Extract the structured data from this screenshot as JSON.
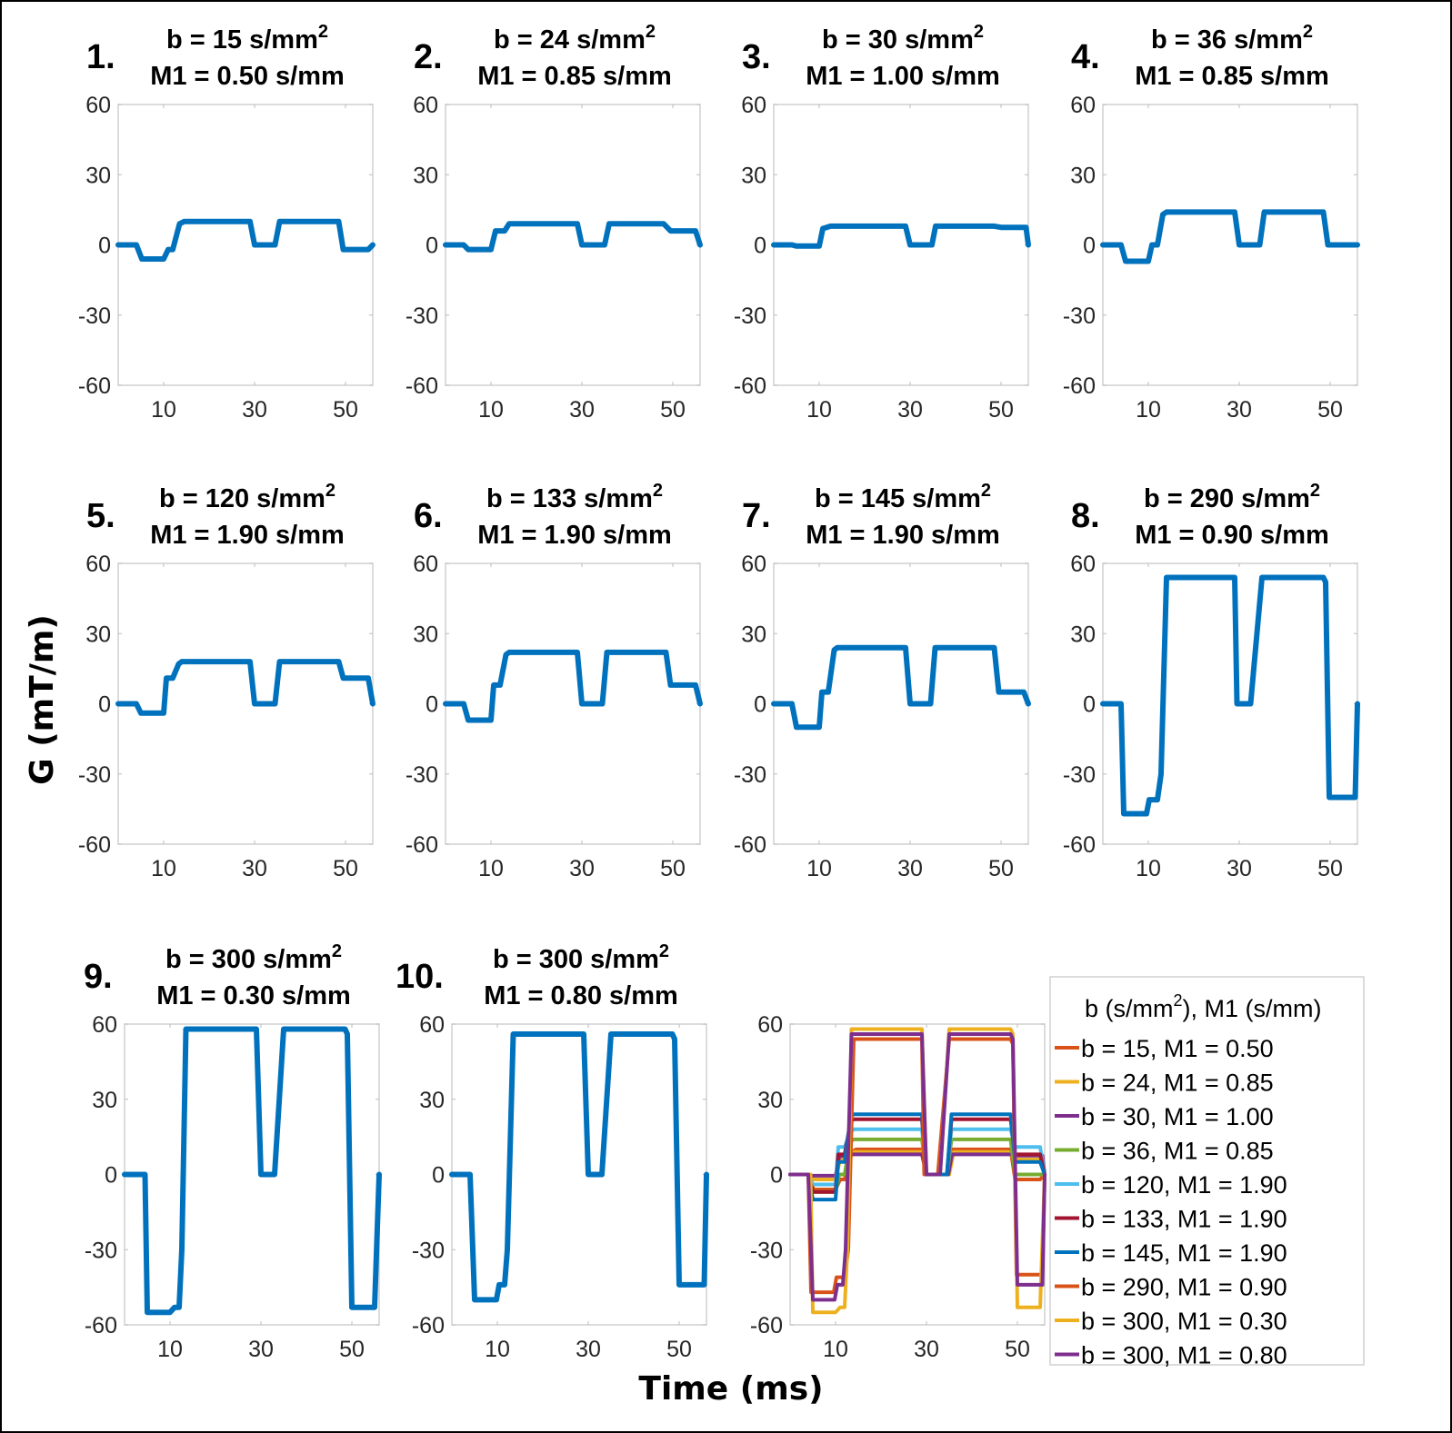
{
  "figure": {
    "ylabel": "G (mT/m)",
    "xlabel": "Time (ms)"
  },
  "chart_data": [
    {
      "type": "line",
      "id": 1,
      "panel_number": "1.",
      "title_line1": "b = 15 s/mm",
      "title_sup": "2",
      "title_line2": "M1 = 0.50 s/mm",
      "xlim": [
        0,
        56
      ],
      "ylim": [
        -60,
        60
      ],
      "xticks": [
        10,
        30,
        50
      ],
      "yticks": [
        60,
        30,
        0,
        -30,
        -60
      ],
      "color": "#0072BD",
      "x": [
        0,
        4,
        5.2,
        10,
        11,
        12,
        13.5,
        14.5,
        29,
        30,
        31,
        34.5,
        35.5,
        48.5,
        49.5,
        55,
        56
      ],
      "y": [
        0,
        0,
        -6,
        -6,
        -2,
        -2,
        9,
        10,
        10,
        0,
        0,
        0,
        10,
        10,
        -2,
        -2,
        0
      ]
    },
    {
      "type": "line",
      "id": 2,
      "panel_number": "2.",
      "title_line1": "b = 24 s/mm",
      "title_sup": "2",
      "title_line2": "M1 = 0.85 s/mm",
      "xlim": [
        0,
        56
      ],
      "ylim": [
        -60,
        60
      ],
      "xticks": [
        10,
        30,
        50
      ],
      "yticks": [
        60,
        30,
        0,
        -30,
        -60
      ],
      "color": "#0072BD",
      "x": [
        0,
        4,
        5,
        10,
        11,
        13,
        14,
        29,
        30,
        31,
        35,
        36,
        48,
        49.5,
        55,
        56
      ],
      "y": [
        0,
        0,
        -2,
        -2,
        6,
        6,
        9,
        9,
        0,
        0,
        0,
        9,
        9,
        6,
        6,
        0
      ]
    },
    {
      "type": "line",
      "id": 3,
      "panel_number": "3.",
      "title_line1": "b = 30 s/mm",
      "title_sup": "2",
      "title_line2": "M1 = 1.00 s/mm",
      "xlim": [
        0,
        56
      ],
      "ylim": [
        -60,
        60
      ],
      "xticks": [
        10,
        30,
        50
      ],
      "yticks": [
        60,
        30,
        0,
        -30,
        -60
      ],
      "color": "#0072BD",
      "x": [
        0,
        4,
        5,
        10,
        10.8,
        12.5,
        29,
        30,
        31,
        34.8,
        35.6,
        48.5,
        50,
        55.5,
        56
      ],
      "y": [
        0,
        0,
        -0.5,
        -0.5,
        7,
        8,
        8,
        0,
        0,
        0,
        8,
        8,
        7.5,
        7.5,
        0
      ]
    },
    {
      "type": "line",
      "id": 4,
      "panel_number": "4.",
      "title_line1": "b = 36 s/mm",
      "title_sup": "2",
      "title_line2": "M1 = 0.85 s/mm",
      "xlim": [
        0,
        56
      ],
      "ylim": [
        -60,
        60
      ],
      "xticks": [
        10,
        30,
        50
      ],
      "yticks": [
        60,
        30,
        0,
        -30,
        -60
      ],
      "color": "#0072BD",
      "x": [
        0,
        4,
        5,
        10,
        10.8,
        12,
        13.2,
        14,
        29,
        30,
        31,
        34.5,
        35.5,
        48.5,
        49.5,
        55,
        56
      ],
      "y": [
        0,
        0,
        -7,
        -7,
        0,
        0,
        13,
        14,
        14,
        0,
        0,
        0,
        14,
        14,
        0,
        0,
        0
      ]
    },
    {
      "type": "line",
      "id": 5,
      "panel_number": "5.",
      "title_line1": "b = 120 s/mm",
      "title_sup": "2",
      "title_line2": "M1 = 1.90 s/mm",
      "xlim": [
        0,
        56
      ],
      "ylim": [
        -60,
        60
      ],
      "xticks": [
        10,
        30,
        50
      ],
      "yticks": [
        60,
        30,
        0,
        -30,
        -60
      ],
      "color": "#0072BD",
      "x": [
        0,
        4,
        5,
        10,
        10.6,
        12,
        13.3,
        14,
        29,
        30,
        31,
        34.5,
        35.5,
        48.5,
        49.5,
        55,
        56
      ],
      "y": [
        0,
        0,
        -4,
        -4,
        11,
        11,
        17,
        18,
        18,
        0,
        0,
        0,
        18,
        18,
        11,
        11,
        0
      ]
    },
    {
      "type": "line",
      "id": 6,
      "panel_number": "6.",
      "title_line1": "b = 133 s/mm",
      "title_sup": "2",
      "title_line2": "M1 = 1.90 s/mm",
      "xlim": [
        0,
        56
      ],
      "ylim": [
        -60,
        60
      ],
      "xticks": [
        10,
        30,
        50
      ],
      "yticks": [
        60,
        30,
        0,
        -30,
        -60
      ],
      "color": "#0072BD",
      "x": [
        0,
        4,
        5,
        10,
        10.6,
        12,
        13.3,
        14,
        29,
        30,
        31,
        34.5,
        35.5,
        48.5,
        49.5,
        55,
        56
      ],
      "y": [
        0,
        0,
        -7,
        -7,
        8,
        8,
        21,
        22,
        22,
        0,
        0,
        0,
        22,
        22,
        8,
        8,
        0
      ]
    },
    {
      "type": "line",
      "id": 7,
      "panel_number": "7.",
      "title_line1": "b = 145 s/mm",
      "title_sup": "2",
      "title_line2": "M1 = 1.90 s/mm",
      "xlim": [
        0,
        56
      ],
      "ylim": [
        -60,
        60
      ],
      "xticks": [
        10,
        30,
        50
      ],
      "yticks": [
        60,
        30,
        0,
        -30,
        -60
      ],
      "color": "#0072BD",
      "x": [
        0,
        4,
        5,
        10,
        10.6,
        12,
        13.3,
        14,
        29,
        30,
        31,
        34.5,
        35.5,
        48.5,
        49.5,
        55,
        56
      ],
      "y": [
        0,
        0,
        -10,
        -10,
        5,
        5,
        23,
        24,
        24,
        0,
        0,
        0,
        24,
        24,
        5,
        5,
        0
      ]
    },
    {
      "type": "line",
      "id": 8,
      "panel_number": "8.",
      "title_line1": "b = 290 s/mm",
      "title_sup": "2",
      "title_line2": "M1 = 0.90 s/mm",
      "xlim": [
        0,
        56
      ],
      "ylim": [
        -60,
        60
      ],
      "xticks": [
        10,
        30,
        50
      ],
      "yticks": [
        60,
        30,
        0,
        -30,
        -60
      ],
      "color": "#0072BD",
      "x": [
        0,
        4,
        4.6,
        9.6,
        10.2,
        12,
        12.8,
        14,
        29,
        29.5,
        31.5,
        32.5,
        35,
        48.5,
        49,
        49.8,
        55.5,
        56
      ],
      "y": [
        0,
        0,
        -47,
        -47,
        -41,
        -41,
        -30,
        54,
        54,
        0,
        0,
        0,
        54,
        54,
        52,
        -40,
        -40,
        0
      ]
    },
    {
      "type": "line",
      "id": 9,
      "panel_number": "9.",
      "title_line1": "b = 300 s/mm",
      "title_sup": "2",
      "title_line2": "M1 = 0.30 s/mm",
      "xlim": [
        0,
        56
      ],
      "ylim": [
        -60,
        60
      ],
      "xticks": [
        10,
        30,
        50
      ],
      "yticks": [
        60,
        30,
        0,
        -30,
        -60
      ],
      "color": "#0072BD",
      "x": [
        0,
        4.5,
        5,
        10,
        11,
        12,
        12.6,
        13.5,
        29,
        30,
        32,
        33,
        35,
        48.5,
        49,
        50,
        55,
        56
      ],
      "y": [
        0,
        0,
        -55,
        -55,
        -53,
        -53,
        -30,
        58,
        58,
        0,
        0,
        0,
        58,
        58,
        56,
        -53,
        -53,
        0
      ]
    },
    {
      "type": "line",
      "id": 10,
      "panel_number": "10.",
      "title_line1": "b = 300 s/mm",
      "title_sup": "2",
      "title_line2": "M1 = 0.80 s/mm",
      "xlim": [
        0,
        56
      ],
      "ylim": [
        -60,
        60
      ],
      "xticks": [
        10,
        30,
        50
      ],
      "yticks": [
        60,
        30,
        0,
        -30,
        -60
      ],
      "color": "#0072BD",
      "x": [
        0,
        4,
        5,
        9.8,
        10.4,
        11.6,
        12.2,
        13.5,
        29,
        30,
        32,
        33,
        35,
        48.5,
        49,
        50,
        55.5,
        56
      ],
      "y": [
        0,
        0,
        -50,
        -50,
        -44,
        -44,
        -30,
        56,
        56,
        0,
        0,
        0,
        56,
        56,
        54,
        -44,
        -44,
        0
      ]
    },
    {
      "type": "line",
      "id": 11,
      "panel_number": "",
      "title_line1": "",
      "title_sup": "",
      "title_line2": "",
      "xlim": [
        0,
        56
      ],
      "ylim": [
        -60,
        60
      ],
      "xticks": [
        10,
        30,
        50
      ],
      "yticks": [
        60,
        30,
        0,
        -30,
        -60
      ],
      "legend_title": "b (s/mm",
      "legend_title_sup": "2",
      "legend_title_rest": "), M1 (s/mm)",
      "legend_position": "right",
      "series": [
        {
          "name": "b = 15, M1 = 0.50",
          "color": "#D95319",
          "ref": 1
        },
        {
          "name": "b = 24, M1 = 0.85",
          "color": "#EDB120",
          "ref": 2
        },
        {
          "name": "b = 30, M1 = 1.00",
          "color": "#7E2F8E",
          "ref": 3
        },
        {
          "name": "b = 36, M1 = 0.85",
          "color": "#77AC30",
          "ref": 4
        },
        {
          "name": "b = 120, M1 = 1.90",
          "color": "#4DBEEE",
          "ref": 5
        },
        {
          "name": "b = 133, M1 = 1.90",
          "color": "#A2142F",
          "ref": 6
        },
        {
          "name": "b = 145, M1 = 1.90",
          "color": "#0072BD",
          "ref": 7
        },
        {
          "name": "b = 290, M1 = 0.90",
          "color": "#D95319",
          "ref": 8
        },
        {
          "name": "b = 300, M1 = 0.30",
          "color": "#EDB120",
          "ref": 9
        },
        {
          "name": "b = 300, M1 = 0.80",
          "color": "#7E2F8E",
          "ref": 10
        }
      ]
    }
  ]
}
